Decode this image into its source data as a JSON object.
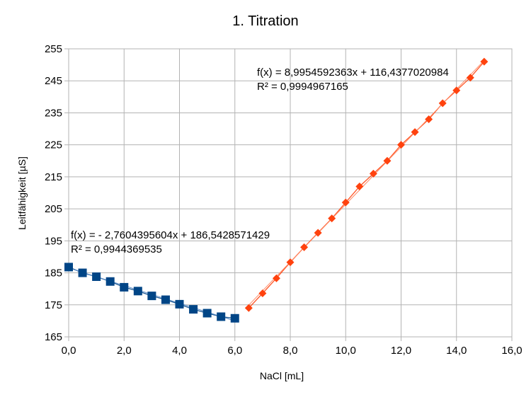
{
  "chart_data": {
    "type": "scatter",
    "title": "1. Titration",
    "xlabel": "NaCl [mL]",
    "ylabel": "Leitfähigkeit [µS]",
    "xlim": [
      0,
      16
    ],
    "ylim": [
      165,
      255
    ],
    "grid": true,
    "x_ticks": [
      "0,0",
      "2,0",
      "4,0",
      "6,0",
      "8,0",
      "10,0",
      "12,0",
      "14,0",
      "16,0"
    ],
    "y_ticks": [
      "165",
      "175",
      "185",
      "195",
      "205",
      "215",
      "225",
      "235",
      "245",
      "255"
    ],
    "series": [
      {
        "marker": "square",
        "color": "#004586",
        "x": [
          0,
          0.5,
          1,
          1.5,
          2,
          2.5,
          3,
          3.5,
          4,
          4.5,
          5,
          5.5,
          6
        ],
        "y": [
          186.8,
          185.0,
          183.8,
          182.3,
          180.5,
          179.3,
          177.8,
          176.6,
          175.2,
          173.6,
          172.4,
          171.3,
          170.8
        ],
        "trendline": {
          "slope": -2.7604395604,
          "intercept": 186.5428571429
        },
        "equation": "f(x) =  - 2,7604395604x + 186,5428571429",
        "r_squared": "R² = 0,9944369535"
      },
      {
        "marker": "diamond",
        "color": "#ff420e",
        "x": [
          6.5,
          7,
          7.5,
          8,
          8.5,
          9,
          9.5,
          10,
          10.5,
          11,
          11.5,
          12,
          12.5,
          13,
          13.5,
          14,
          14.5,
          15
        ],
        "y": [
          174,
          178.6,
          183.3,
          188.3,
          193,
          197.5,
          202,
          207,
          212,
          216,
          220,
          225,
          229,
          233,
          238,
          242,
          246,
          251
        ],
        "trendline": {
          "slope": 8.9954592363,
          "intercept": 116.4377020984
        },
        "equation": "f(x) = 8,9954592363x + 116,4377020984",
        "r_squared": "R² = 0,9994967165"
      }
    ]
  }
}
